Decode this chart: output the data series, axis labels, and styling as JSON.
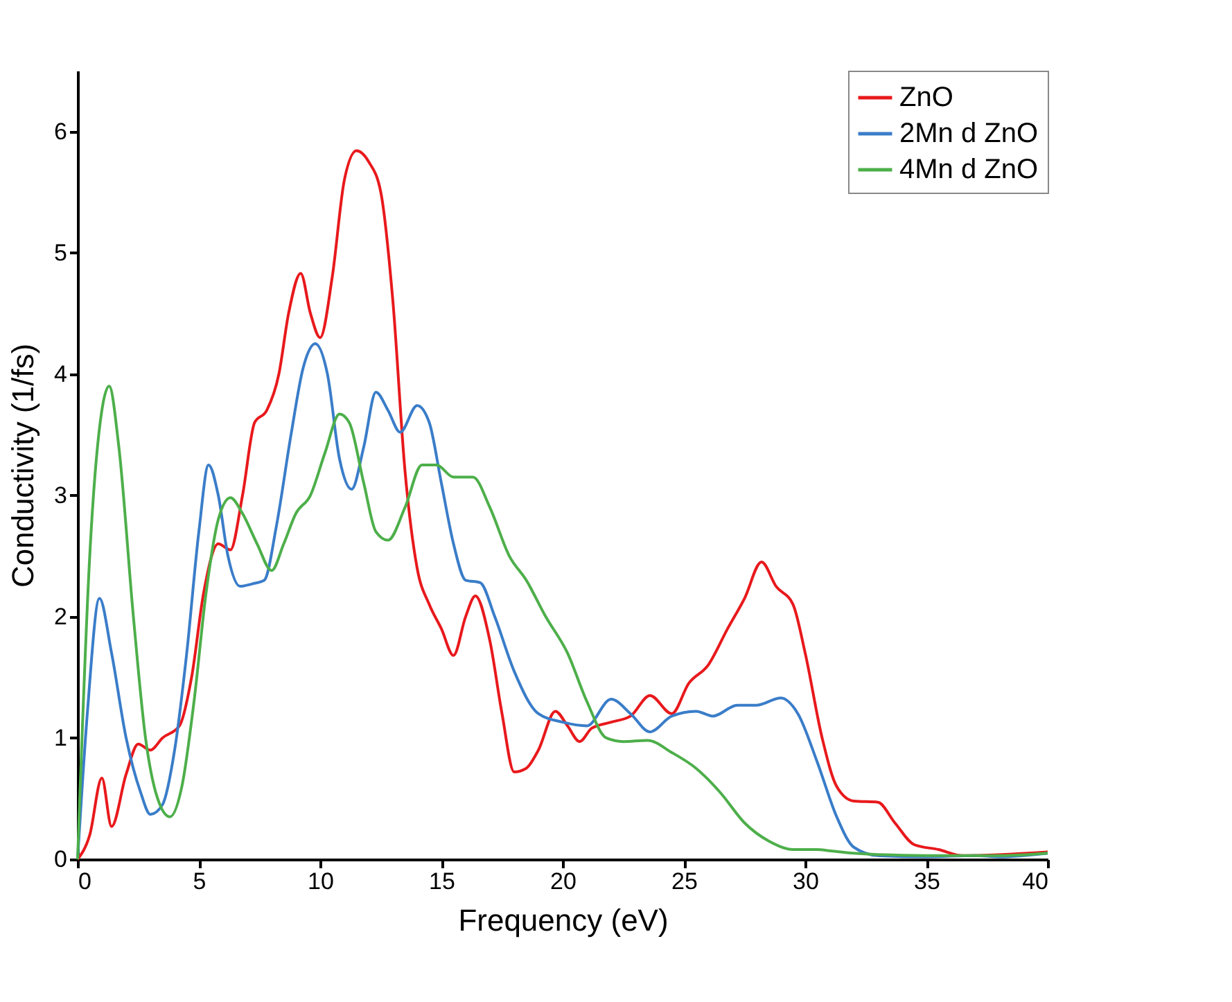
{
  "chart_data": {
    "type": "line",
    "xlabel": "Frequency (eV)",
    "ylabel": "Conductivity (1/fs)",
    "xlim": [
      0,
      40
    ],
    "xticks": [
      0,
      5,
      10,
      15,
      20,
      25,
      30,
      35,
      40
    ],
    "ylim": [
      0,
      6.5
    ],
    "yticks": [
      0,
      1,
      2,
      3,
      4,
      5,
      6
    ],
    "grid": false,
    "legend": "top right",
    "marker": "none",
    "line_style": "solid",
    "series": [
      {
        "name": "ZnO",
        "color": "#e8191c",
        "x": [
          0,
          0.5,
          1.0,
          1.4,
          2.0,
          2.5,
          3.0,
          3.5,
          4.2,
          4.7,
          5.2,
          5.8,
          6.3,
          6.8,
          7.3,
          7.8,
          8.3,
          8.7,
          9.2,
          9.6,
          10.0,
          10.5,
          11.0,
          11.5,
          12.0,
          12.5,
          13.0,
          13.5,
          14.0,
          14.5,
          15.0,
          15.5,
          16.0,
          16.4,
          17.0,
          17.5,
          18.0,
          18.5,
          19.0,
          19.7,
          20.2,
          20.7,
          21.2,
          22.0,
          22.8,
          23.6,
          24.5,
          25.2,
          26.0,
          26.8,
          27.5,
          28.2,
          28.8,
          29.5,
          30.0,
          30.7,
          31.3,
          32.0,
          33.0,
          33.7,
          34.5,
          35.5,
          36.5,
          40
        ],
        "values": [
          0,
          0.2,
          0.67,
          0.27,
          0.7,
          0.95,
          0.9,
          1.0,
          1.1,
          1.5,
          2.2,
          2.6,
          2.55,
          3.0,
          3.6,
          3.7,
          4.0,
          4.5,
          4.83,
          4.5,
          4.3,
          4.8,
          5.6,
          5.84,
          5.75,
          5.5,
          4.6,
          3.2,
          2.4,
          2.1,
          1.9,
          1.68,
          2.0,
          2.17,
          1.8,
          1.2,
          0.72,
          0.75,
          0.9,
          1.22,
          1.1,
          0.97,
          1.08,
          1.13,
          1.18,
          1.35,
          1.2,
          1.45,
          1.6,
          1.9,
          2.15,
          2.45,
          2.25,
          2.1,
          1.7,
          1.0,
          0.6,
          0.48,
          0.47,
          0.3,
          0.12,
          0.08,
          0.03,
          0.06
        ]
      },
      {
        "name": "2Mn d ZnO",
        "color": "#3a7dc9",
        "x": [
          0,
          0.4,
          0.9,
          1.4,
          2.0,
          2.6,
          3.0,
          3.5,
          4.0,
          4.5,
          5.0,
          5.4,
          5.8,
          6.2,
          6.7,
          7.2,
          7.7,
          8.2,
          8.8,
          9.3,
          9.8,
          10.3,
          10.8,
          11.3,
          11.8,
          12.3,
          12.8,
          13.3,
          14.0,
          14.5,
          15.0,
          15.5,
          16.0,
          16.6,
          17.2,
          18.0,
          19.0,
          20.0,
          21.0,
          22.0,
          22.8,
          23.6,
          24.5,
          25.5,
          26.2,
          27.2,
          28.0,
          29.0,
          29.7,
          30.5,
          31.3,
          32.0,
          33,
          35,
          37,
          38,
          40
        ],
        "values": [
          0,
          1.2,
          2.15,
          1.7,
          1.0,
          0.55,
          0.37,
          0.45,
          0.9,
          1.7,
          2.7,
          3.25,
          3.0,
          2.5,
          2.25,
          2.27,
          2.3,
          2.75,
          3.5,
          4.05,
          4.25,
          4.0,
          3.3,
          3.05,
          3.4,
          3.85,
          3.7,
          3.52,
          3.74,
          3.6,
          3.1,
          2.6,
          2.3,
          2.28,
          2.0,
          1.55,
          1.2,
          1.13,
          1.1,
          1.32,
          1.2,
          1.05,
          1.18,
          1.22,
          1.18,
          1.27,
          1.27,
          1.33,
          1.2,
          0.8,
          0.35,
          0.1,
          0.03,
          0.02,
          0.03,
          0.02,
          0.05
        ]
      },
      {
        "name": "4Mn d ZnO",
        "color": "#4daf4a",
        "x": [
          0,
          0.5,
          1.0,
          1.3,
          1.7,
          2.3,
          2.8,
          3.3,
          3.8,
          4.3,
          4.8,
          5.3,
          5.8,
          6.3,
          6.8,
          7.4,
          8.0,
          8.5,
          9.0,
          9.6,
          10.2,
          10.8,
          11.2,
          11.8,
          12.3,
          12.8,
          13.5,
          14.2,
          14.8,
          15.5,
          16.3,
          17.0,
          17.8,
          18.5,
          19.3,
          20.2,
          21.0,
          21.8,
          22.5,
          23.5,
          24.5,
          25.5,
          26.5,
          27.5,
          28.5,
          29.5,
          30.5,
          31,
          32,
          35,
          38,
          40
        ],
        "values": [
          0,
          2.5,
          3.7,
          3.9,
          3.4,
          2.0,
          1.0,
          0.5,
          0.35,
          0.6,
          1.3,
          2.2,
          2.8,
          2.98,
          2.85,
          2.6,
          2.38,
          2.6,
          2.85,
          3.0,
          3.35,
          3.67,
          3.6,
          3.1,
          2.7,
          2.63,
          2.9,
          3.25,
          3.25,
          3.15,
          3.15,
          2.9,
          2.5,
          2.3,
          2.0,
          1.7,
          1.3,
          1.0,
          0.97,
          0.98,
          0.88,
          0.75,
          0.55,
          0.3,
          0.15,
          0.08,
          0.08,
          0.07,
          0.05,
          0.03,
          0.03,
          0.05
        ]
      }
    ]
  }
}
